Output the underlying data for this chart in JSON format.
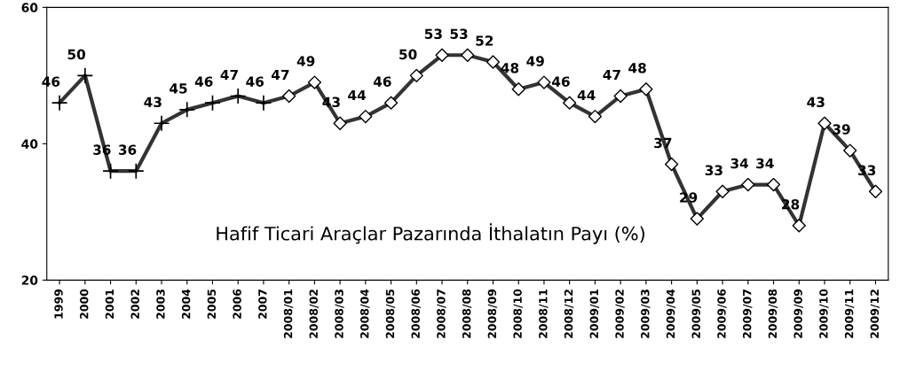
{
  "chart_data": {
    "type": "line",
    "categories": [
      "1999",
      "2000",
      "2001",
      "2002",
      "2003",
      "2004",
      "2005",
      "2006",
      "2007",
      "2008/01",
      "2008/02",
      "2008/03",
      "2008/04",
      "2008/05",
      "2008/06",
      "2008/07",
      "2008/08",
      "2008/09",
      "2008/10",
      "2008/11",
      "2008/12",
      "2009/01",
      "2009/02",
      "2009/03",
      "2009/04",
      "2009/05",
      "2009/06",
      "2009/07",
      "2009/08",
      "2009/09",
      "2009/10",
      "2009/11",
      "2009/12"
    ],
    "series": [
      {
        "color": "#333333",
        "marker": "none",
        "line_style": "solid",
        "data_labels": true,
        "values": [
          46,
          50,
          36,
          36,
          43,
          45,
          46,
          47,
          46,
          47,
          49,
          43,
          44,
          46,
          50,
          53,
          53,
          52,
          48,
          49,
          46,
          44,
          47,
          48,
          37,
          29,
          33,
          34,
          34,
          28,
          43,
          39,
          33
        ]
      },
      {
        "type": "scatter",
        "color": "#000000",
        "marker": "cross",
        "values": [
          46,
          50,
          36,
          36,
          43,
          45,
          46,
          47,
          46,
          null,
          null,
          null,
          null,
          null,
          null,
          null,
          null,
          null,
          null,
          null,
          null,
          null,
          null,
          null,
          null,
          null,
          null,
          null,
          null,
          null,
          null,
          null,
          null
        ]
      },
      {
        "type": "scatter",
        "color": "#000000",
        "marker": "diamond",
        "values": [
          null,
          null,
          null,
          null,
          null,
          null,
          null,
          null,
          null,
          47,
          49,
          43,
          44,
          46,
          50,
          53,
          53,
          52,
          48,
          49,
          46,
          44,
          47,
          48,
          37,
          29,
          33,
          34,
          34,
          28,
          43,
          39,
          33
        ]
      }
    ],
    "ylim": [
      20,
      60
    ],
    "yticks": [
      20,
      40,
      60
    ],
    "grid": false,
    "legend": false,
    "annotations": [
      "Hafif Ticari Araçlar Pazarında İthalatın Payı (%)"
    ]
  }
}
